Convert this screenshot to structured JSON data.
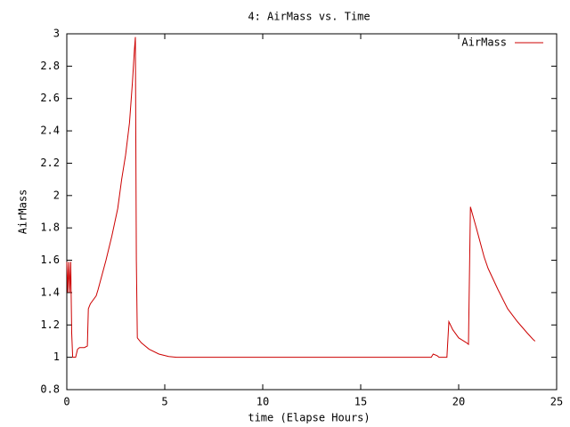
{
  "chart_data": {
    "type": "line",
    "title": "4: AirMass vs. Time",
    "x_label": "time (Elapse Hours)",
    "y_label": "AirMass",
    "x": [
      0,
      0.05,
      0.1,
      0.15,
      0.2,
      0.25,
      0.3,
      0.45,
      0.55,
      0.65,
      0.9,
      1.05,
      1.1,
      1.2,
      1.5,
      1.6,
      2.0,
      2.3,
      2.6,
      2.8,
      3.0,
      3.2,
      3.35,
      3.45,
      3.5,
      3.55,
      3.6,
      3.8,
      4.2,
      4.7,
      5.2,
      5.6,
      18.6,
      18.7,
      18.9,
      19.0,
      19.4,
      19.5,
      19.7,
      20.0,
      20.4,
      20.5,
      20.6,
      20.9,
      21.3,
      21.5,
      22.0,
      22.5,
      23.0,
      23.5,
      23.8,
      23.9
    ],
    "series": [
      {
        "name": "AirMass",
        "color": "#cc0000",
        "values": [
          1.59,
          1.4,
          1.59,
          1.4,
          1.59,
          1.15,
          1.0,
          1.0,
          1.05,
          1.06,
          1.06,
          1.07,
          1.3,
          1.33,
          1.38,
          1.42,
          1.6,
          1.75,
          1.92,
          2.1,
          2.25,
          2.45,
          2.7,
          2.9,
          2.98,
          1.6,
          1.12,
          1.09,
          1.05,
          1.02,
          1.005,
          1.0,
          1.0,
          1.02,
          1.01,
          1.0,
          1.0,
          1.22,
          1.17,
          1.12,
          1.09,
          1.08,
          1.93,
          1.8,
          1.62,
          1.55,
          1.42,
          1.3,
          1.22,
          1.15,
          1.11,
          1.1
        ]
      }
    ],
    "xlim": [
      0,
      25
    ],
    "xticks": [
      0,
      5,
      10,
      15,
      20,
      25
    ],
    "ylim": [
      0.8,
      3
    ],
    "yticks": [
      0.8,
      1,
      1.2,
      1.4,
      1.6,
      1.8,
      2,
      2.2,
      2.4,
      2.6,
      2.8,
      3
    ],
    "legend": "top-right",
    "grid": false
  }
}
